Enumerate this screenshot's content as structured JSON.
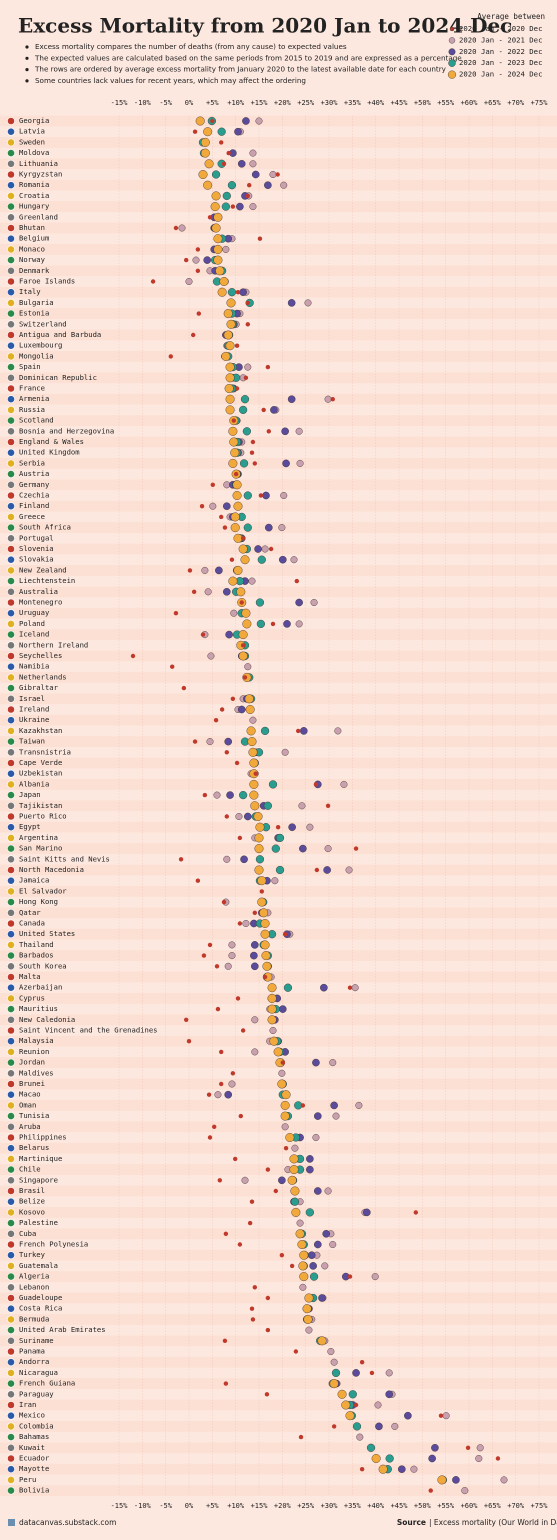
{
  "chart_data": {
    "type": "dot",
    "title": "Excess Mortality from 2020 Jan to 2024 Dec",
    "notes": [
      "Excess mortality compares the number of deaths (from any cause) to expected values",
      "The expected values are calculated based on the same periods from 2015 to 2019 and are expressed as a percentage",
      "The rows are ordered by average excess mortality from January 2020 to the latest available date for each country",
      "Some countries lack values for recent years, which may affect the ordering"
    ],
    "legend_title": "Average between",
    "credit": "datacanvas.substack.com",
    "source_label": "Source",
    "source": "| Excess mortality (Our World in Data)",
    "xlim": [
      -15,
      75
    ],
    "xticks": [
      {
        "value": -15,
        "label": "-15%"
      },
      {
        "value": -10,
        "label": "-10%"
      },
      {
        "value": -5,
        "label": "-5%"
      },
      {
        "value": 0,
        "label": "0%"
      },
      {
        "value": 5,
        "label": "+5%"
      },
      {
        "value": 10,
        "label": "+10%"
      },
      {
        "value": 15,
        "label": "+15%"
      },
      {
        "value": 20,
        "label": "+20%"
      },
      {
        "value": 25,
        "label": "+25%"
      },
      {
        "value": 30,
        "label": "+30%"
      },
      {
        "value": 35,
        "label": "+35%"
      },
      {
        "value": 40,
        "label": "+40%"
      },
      {
        "value": 45,
        "label": "+45%"
      },
      {
        "value": 50,
        "label": "+50%"
      },
      {
        "value": 55,
        "label": "+55%"
      },
      {
        "value": 60,
        "label": "+60%"
      },
      {
        "value": 65,
        "label": "+65%"
      },
      {
        "value": 70,
        "label": "+70%"
      },
      {
        "value": 75,
        "label": "+75%"
      }
    ],
    "grid": true,
    "categories": [
      "Georgia",
      "Latvia",
      "Sweden",
      "Moldova",
      "Lithuania",
      "Kyrgyzstan",
      "Romania",
      "Croatia",
      "Hungary",
      "Greenland",
      "Bhutan",
      "Belgium",
      "Monaco",
      "Norway",
      "Denmark",
      "Faroe Islands",
      "Italy",
      "Bulgaria",
      "Estonia",
      "Switzerland",
      "Antigua and Barbuda",
      "Luxembourg",
      "Mongolia",
      "Spain",
      "Dominican Republic",
      "France",
      "Armenia",
      "Russia",
      "Scotland",
      "Bosnia and Herzegovina",
      "England & Wales",
      "United Kingdom",
      "Serbia",
      "Austria",
      "Germany",
      "Czechia",
      "Finland",
      "Greece",
      "South Africa",
      "Portugal",
      "Slovenia",
      "Slovakia",
      "New Zealand",
      "Liechtenstein",
      "Australia",
      "Montenegro",
      "Uruguay",
      "Poland",
      "Iceland",
      "Northern Ireland",
      "Seychelles",
      "Namibia",
      "Netherlands",
      "Gibraltar",
      "Israel",
      "Ireland",
      "Ukraine",
      "Kazakhstan",
      "Taiwan",
      "Transnistria",
      "Cape Verde",
      "Uzbekistan",
      "Albania",
      "Japan",
      "Tajikistan",
      "Puerto Rico",
      "Egypt",
      "Argentina",
      "San Marino",
      "Saint Kitts and Nevis",
      "North Macedonia",
      "Jamaica",
      "El Salvador",
      "Hong Kong",
      "Qatar",
      "Canada",
      "United States",
      "Thailand",
      "Barbados",
      "South Korea",
      "Malta",
      "Azerbaijan",
      "Cyprus",
      "Mauritius",
      "New Caledonia",
      "Saint Vincent and the Grenadines",
      "Malaysia",
      "Reunion",
      "Jordan",
      "Maldives",
      "Brunei",
      "Macao",
      "Oman",
      "Tunisia",
      "Aruba",
      "Philippines",
      "Belarus",
      "Martinique",
      "Chile",
      "Singapore",
      "Brasil",
      "Belize",
      "Kosovo",
      "Palestine",
      "Cuba",
      "French Polynesia",
      "Turkey",
      "Guatemala",
      "Algeria",
      "Lebanon",
      "Guadeloupe",
      "Costa Rica",
      "Bermuda",
      "United Arab Emirates",
      "Suriname",
      "Panama",
      "Andorra",
      "Nicaragua",
      "French Guiana",
      "Paraguay",
      "Iran",
      "Mexico",
      "Colombia",
      "Bahamas",
      "Kuwait",
      "Ecuador",
      "Mayotte",
      "Peru",
      "Bolivia"
    ],
    "series": [
      {
        "name": "2020 Jan - 2020 Dec",
        "color": "#c0392b",
        "values": [
          5,
          1.3,
          6.9,
          8.5,
          7.5,
          19,
          12.9,
          12.6,
          9.4,
          4.5,
          -2.8,
          15.2,
          1.9,
          -0.6,
          1.9,
          -7.7,
          10.5,
          12.6,
          2.1,
          12.6,
          0.9,
          10.3,
          -3.9,
          16.9,
          12.2,
          10.3,
          30.8,
          16,
          9.6,
          17.1,
          13.7,
          13.5,
          14.1,
          10.1,
          5.1,
          15.4,
          2.8,
          6.9,
          7.7,
          11.6,
          17.6,
          9.2,
          0.2,
          23.1,
          1.1,
          11.3,
          -2.8,
          18,
          3,
          11.6,
          -12,
          -3.6,
          12,
          -1.1,
          9.4,
          7.1,
          5.8,
          23.4,
          1.3,
          8.1,
          10.3,
          14.3,
          27.2,
          3.4,
          29.8,
          8.1,
          19.1,
          10.9,
          35.8,
          -1.7,
          27.4,
          1.9,
          15.6,
          7.5,
          14.1,
          10.9,
          20.6,
          4.5,
          3.2,
          6,
          16.3,
          34.5,
          10.5,
          6.2,
          -0.6,
          11.6,
          0,
          6.9,
          20.1,
          9.4,
          6.9,
          4.3,
          24.4,
          11.1,
          5.4,
          4.5,
          20.8,
          9.9,
          16.9,
          6.6,
          18.6,
          13.5,
          48.6,
          13.1,
          7.9,
          10.9,
          19.9,
          22.1,
          34.5,
          14.1,
          16.9,
          13.5,
          13.7,
          16.9,
          7.7,
          22.9,
          37.1,
          39.2,
          7.9,
          16.7,
          35.8,
          54,
          31.1,
          24,
          59.8,
          66.2,
          37.1,
          null,
          51.8
        ]
      },
      {
        "name": "2020 Jan - 2021 Dec",
        "color": "#c9a1ae",
        "values": [
          15,
          11,
          3,
          13.7,
          13.7,
          18,
          20.3,
          12.8,
          13.7,
          6,
          -1.5,
          9.2,
          7.9,
          1.5,
          4.5,
          0,
          12.2,
          25.5,
          10.9,
          10.1,
          8.4,
          8.1,
          8.1,
          12.6,
          11.6,
          9,
          29.8,
          18.6,
          10.3,
          23.6,
          11.3,
          11.1,
          23.8,
          10.3,
          8.1,
          20.3,
          5.1,
          8.8,
          19.9,
          11.3,
          16.3,
          22.5,
          3.4,
          13.5,
          4.1,
          26.8,
          9.6,
          23.6,
          3.4,
          11.8,
          4.7,
          12.6,
          13,
          null,
          11.6,
          10.5,
          13.7,
          31.9,
          4.5,
          20.6,
          14.1,
          13.3,
          33.2,
          6,
          24.2,
          10.7,
          25.9,
          14.1,
          29.8,
          8.1,
          34.3,
          18.4,
          null,
          7.9,
          16.9,
          12.2,
          21.6,
          9.2,
          9.2,
          8.4,
          17.6,
          35.6,
          17.6,
          17.3,
          14.1,
          18,
          17.3,
          14.1,
          30.8,
          19.9,
          9.2,
          6.2,
          36.4,
          31.5,
          20.6,
          27.2,
          22.7,
          23.4,
          21.2,
          12,
          29.8,
          23.8,
          37.7,
          23.8,
          30.4,
          30.8,
          27.4,
          29.1,
          39.9,
          24.4,
          28.7,
          25.1,
          26.3,
          25.7,
          29.1,
          30.4,
          31.1,
          42.9,
          31.7,
          43.5,
          40.5,
          55.1,
          44.1,
          36.6,
          62.4,
          62.1,
          48.2,
          67.5,
          59.1
        ]
      },
      {
        "name": "2020 Jan - 2022 Dec",
        "color": "#5a4b9b",
        "values": [
          12.2,
          10.5,
          3.5,
          9.4,
          11.3,
          14.3,
          16.9,
          12,
          10.9,
          5.4,
          5.4,
          8.4,
          5.4,
          3.9,
          5.6,
          7.7,
          11.6,
          22,
          10.3,
          9.6,
          7.9,
          8.6,
          7.7,
          10.7,
          9.4,
          9.6,
          22,
          18.2,
          10.1,
          20.6,
          10.7,
          10.5,
          20.8,
          10.5,
          9.4,
          16.5,
          8.1,
          9.4,
          17.1,
          11.3,
          14.8,
          20.1,
          6.4,
          12,
          8.1,
          23.6,
          12,
          21,
          8.6,
          11.6,
          11.3,
          null,
          12.6,
          null,
          12.4,
          11.3,
          null,
          24.6,
          8.4,
          14.3,
          13.9,
          14.1,
          27.6,
          8.8,
          16,
          12.6,
          22.1,
          19.1,
          24.4,
          11.8,
          29.6,
          16.7,
          null,
          15.6,
          15.6,
          13.9,
          21,
          14.1,
          13.9,
          14.1,
          16.9,
          28.9,
          18.9,
          20.1,
          18.4,
          null,
          19.1,
          20.6,
          27.2,
          null,
          20.1,
          8.4,
          31.1,
          27.6,
          null,
          23.8,
          null,
          25.9,
          25.9,
          19.9,
          27.6,
          22.5,
          38.1,
          null,
          29.4,
          27.6,
          26.3,
          26.6,
          33.6,
          null,
          28.5,
          25.7,
          25.7,
          null,
          28.3,
          null,
          null,
          35.8,
          31.5,
          42.9,
          35.1,
          46.9,
          40.7,
          null,
          52.7,
          52.1,
          45.6,
          57.2,
          null
        ]
      },
      {
        "name": "2020 Jan - 2023 Dec",
        "color": "#2a9d8f",
        "values": [
          4.9,
          7,
          3,
          3.2,
          7,
          5.8,
          9.2,
          8.1,
          7.9,
          6.2,
          5.6,
          7.1,
          6.2,
          5.6,
          7.1,
          6,
          9.2,
          13,
          9.2,
          9.4,
          8.6,
          8.4,
          8.4,
          9.4,
          10.1,
          9.2,
          12,
          11.6,
          10.1,
          12.4,
          10.3,
          10.3,
          11.8,
          10.3,
          10.1,
          12.6,
          10.5,
          11.3,
          12.6,
          10.9,
          12.4,
          15.6,
          10.3,
          10.9,
          10.1,
          15.2,
          11.3,
          15.4,
          10.3,
          12,
          12,
          null,
          12.9,
          null,
          13.3,
          13.1,
          null,
          16.3,
          12,
          15,
          14.1,
          13.9,
          18,
          11.6,
          16.9,
          14.3,
          16.5,
          19.5,
          18.6,
          15.2,
          19.5,
          15.2,
          null,
          15.9,
          16,
          15.2,
          17.8,
          16,
          16.9,
          16.9,
          16.7,
          21.2,
          17.8,
          18.6,
          17.8,
          null,
          18.9,
          19.5,
          19.7,
          null,
          20.1,
          20.1,
          23.4,
          21.2,
          null,
          22.9,
          null,
          23.8,
          23.8,
          22.3,
          22.7,
          22.7,
          25.9,
          null,
          24.2,
          24.6,
          24.8,
          24.6,
          26.8,
          null,
          26.6,
          25.3,
          25.3,
          null,
          28.1,
          null,
          null,
          31.5,
          30.8,
          35.1,
          34.5,
          34.9,
          36,
          null,
          39,
          43,
          42.6,
          54.4,
          null
        ]
      },
      {
        "name": "2020 Jan - 2024 Dec",
        "color": "#f2a93b",
        "values": [
          2.4,
          4,
          3.5,
          3.5,
          4.3,
          3,
          4,
          5.8,
          5.6,
          6.2,
          5.8,
          6.2,
          6.2,
          6.2,
          6.6,
          7.5,
          7.1,
          9,
          8.4,
          9,
          8.4,
          8.8,
          7.9,
          8.8,
          8.8,
          8.6,
          8.8,
          8.8,
          9.6,
          9.4,
          9.6,
          9.8,
          9.4,
          10.1,
          10.3,
          10.3,
          10.5,
          9.9,
          9.9,
          10.5,
          11.6,
          12,
          10.5,
          9.4,
          11.1,
          11.3,
          12.2,
          12.4,
          11.6,
          11.1,
          11.6,
          null,
          12.4,
          null,
          12.9,
          13.1,
          null,
          13.3,
          13.5,
          13.7,
          13.9,
          13.9,
          13.9,
          13.9,
          14.1,
          14.8,
          15.2,
          15,
          15,
          null,
          15,
          15.6,
          null,
          15.6,
          16,
          16.3,
          16.3,
          16.3,
          16.5,
          16.7,
          16.9,
          17.8,
          17.8,
          17.8,
          17.8,
          null,
          18.2,
          19.1,
          19.5,
          null,
          19.9,
          20.8,
          20.6,
          20.6,
          null,
          21.6,
          null,
          22.5,
          22.5,
          22.1,
          22.7,
          null,
          22.9,
          null,
          23.8,
          24.2,
          24.6,
          24.4,
          24.6,
          null,
          25.7,
          25.3,
          25.5,
          null,
          28.5,
          null,
          null,
          null,
          31.1,
          32.8,
          33.6,
          34.5,
          null,
          null,
          null,
          40.1,
          41.6,
          54.2,
          null
        ]
      }
    ]
  }
}
